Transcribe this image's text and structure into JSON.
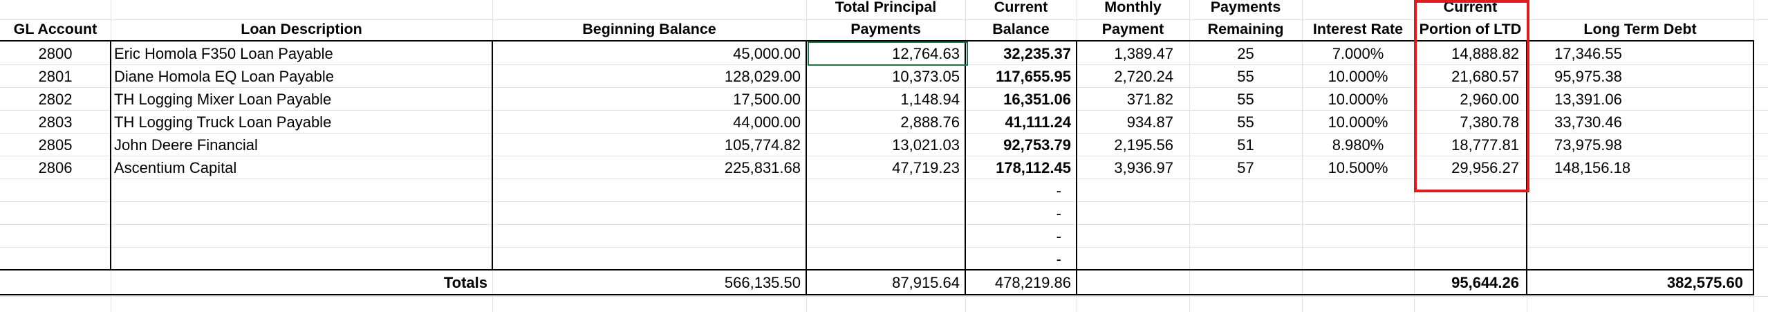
{
  "headers": {
    "gl_account": "GL Account",
    "loan_description": "Loan Description",
    "beginning_balance": "Beginning Balance",
    "total_principal_1": "Total Principal",
    "total_principal_2": "Payments",
    "current_balance_1": "Current",
    "current_balance_2": "Balance",
    "monthly_payment_1": "Monthly",
    "monthly_payment_2": "Payment",
    "payments_remaining_1": "Payments",
    "payments_remaining_2": "Remaining",
    "interest_rate": "Interest Rate",
    "current_ltd_1": "Current",
    "current_ltd_2": "Portion of LTD",
    "long_term_debt": "Long Term Debt"
  },
  "rows": [
    {
      "gl": "2800",
      "desc": "Eric Homola F350 Loan Payable",
      "begin": "45,000.00",
      "principal": "12,764.63",
      "current": "32,235.37",
      "monthly": "1,389.47",
      "remaining": "25",
      "rate": "7.000%",
      "current_ltd": "14,888.82",
      "ltd": "17,346.55"
    },
    {
      "gl": "2801",
      "desc": "Diane Homola EQ Loan Payable",
      "begin": "128,029.00",
      "principal": "10,373.05",
      "current": "117,655.95",
      "monthly": "2,720.24",
      "remaining": "55",
      "rate": "10.000%",
      "current_ltd": "21,680.57",
      "ltd": "95,975.38"
    },
    {
      "gl": "2802",
      "desc": "TH Logging Mixer Loan Payable",
      "begin": "17,500.00",
      "principal": "1,148.94",
      "current": "16,351.06",
      "monthly": "371.82",
      "remaining": "55",
      "rate": "10.000%",
      "current_ltd": "2,960.00",
      "ltd": "13,391.06"
    },
    {
      "gl": "2803",
      "desc": "TH Logging Truck Loan Payable",
      "begin": "44,000.00",
      "principal": "2,888.76",
      "current": "41,111.24",
      "monthly": "934.87",
      "remaining": "55",
      "rate": "10.000%",
      "current_ltd": "7,380.78",
      "ltd": "33,730.46"
    },
    {
      "gl": "2805",
      "desc": "John Deere Financial",
      "begin": "105,774.82",
      "principal": "13,021.03",
      "current": "92,753.79",
      "monthly": "2,195.56",
      "remaining": "51",
      "rate": "8.980%",
      "current_ltd": "18,777.81",
      "ltd": "73,975.98"
    },
    {
      "gl": "2806",
      "desc": "Ascentium Capital",
      "begin": "225,831.68",
      "principal": "47,719.23",
      "current": "178,112.45",
      "monthly": "3,936.97",
      "remaining": "57",
      "rate": "10.500%",
      "current_ltd": "29,956.27",
      "ltd": "148,156.18"
    }
  ],
  "empty_rows": [
    {
      "current": "-"
    },
    {
      "current": "-"
    },
    {
      "current": "-"
    },
    {
      "current": "-"
    }
  ],
  "totals": {
    "label": "Totals",
    "begin": "566,135.50",
    "principal": "87,915.64",
    "current": "478,219.86",
    "current_ltd": "95,644.26",
    "ltd": "382,575.60"
  },
  "colors": {
    "highlight_box": "#e01b1b",
    "selected_cell": "#217346",
    "gridline": "#dfe3e6"
  }
}
